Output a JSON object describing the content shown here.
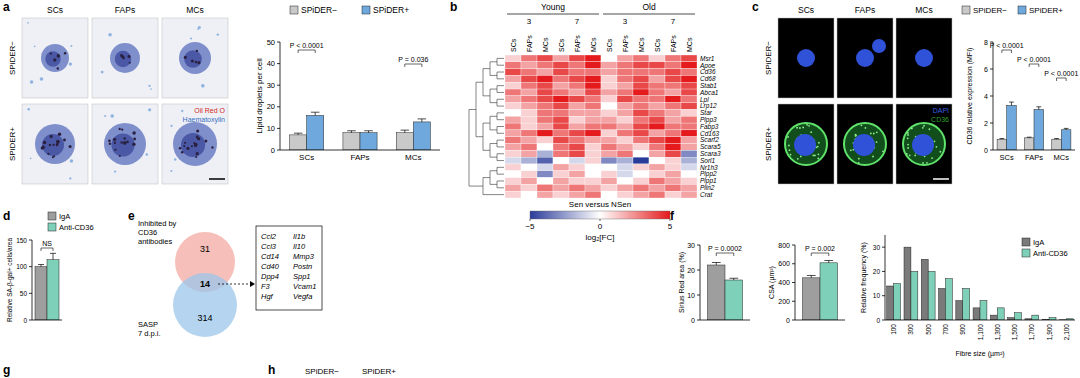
{
  "panel_labels": [
    "a",
    "b",
    "c",
    "d",
    "e",
    "f",
    "g",
    "h"
  ],
  "bottom_legend": [
    "SPiDER−",
    "SPiDER+"
  ],
  "micrographs": [
    {
      "columns": [
        "SCs",
        "FAPs",
        "MCs"
      ],
      "rows": [
        "SPiDER−",
        "SPiDER+"
      ],
      "stains": [
        {
          "text": "Oil Red O",
          "color": "#d62728"
        },
        {
          "text": "Haematoxylin",
          "color": "#3a6fc4"
        }
      ]
    },
    {
      "columns": [
        "SCs",
        "FAPs",
        "MCs"
      ],
      "rows": [
        "SPiDER−",
        "SPiDER+"
      ],
      "stains": [
        {
          "text": "DAPI",
          "color": "#3a5fe0"
        },
        {
          "text": "CD36",
          "color": "#2ca02c"
        }
      ]
    }
  ],
  "venn": {
    "sets": [
      {
        "label": [
          "Inhibited by",
          "CD36",
          "antibodies"
        ],
        "count": 31,
        "color": "#f4aaa3"
      },
      {
        "label": [
          "SASP",
          "7 d.p.i."
        ],
        "count": 314,
        "color": "#9cc6ea"
      }
    ],
    "overlap": 14,
    "genes": [
      "Ccl2",
      "Ccl3",
      "Cd14",
      "Cd40",
      "Dpp4",
      "F3",
      "Hgf",
      "Il1b",
      "Il10",
      "Mmp3",
      "Postn",
      "Spp1",
      "Vcam1",
      "Vegfa"
    ]
  },
  "chart_data": [
    {
      "type": "bar",
      "y_label": "Lipid droplets per cell",
      "categories": [
        "SCs",
        "FAPs",
        "MCs"
      ],
      "series": [
        {
          "name": "SPiDER−",
          "color": "#c9c9c9",
          "values": [
            7,
            8,
            8
          ],
          "errors": [
            0.8,
            0.9,
            1.2
          ]
        },
        {
          "name": "SPiDER+",
          "color": "#6fa8dc",
          "values": [
            16,
            8,
            13
          ],
          "errors": [
            1.5,
            0.9,
            1.4
          ]
        }
      ],
      "ylim": [
        0,
        50
      ],
      "yticks": [
        0,
        10,
        20,
        30,
        40,
        50
      ],
      "legend": "top",
      "annotations": [
        {
          "text": "P < 0.0001",
          "category": 0
        },
        {
          "text": "P = 0.036",
          "category": 2
        }
      ]
    },
    {
      "type": "heatmap",
      "groups": [
        {
          "label": "Young",
          "days": [
            {
              "label": "3",
              "columns": [
                "SCs",
                "FAPs",
                "MCs"
              ]
            },
            {
              "label": "7",
              "columns": [
                "SCs",
                "FAPs",
                "MCs"
              ]
            }
          ]
        },
        {
          "label": "Old",
          "days": [
            {
              "label": "3",
              "columns": [
                "SCs",
                "FAPs",
                "MCs"
              ]
            },
            {
              "label": "7",
              "columns": [
                "SCs",
                "FAPs",
                "MCs"
              ]
            }
          ]
        }
      ],
      "rows": [
        "Msr1",
        "Apoe",
        "Cd36",
        "Cd68",
        "Stab1",
        "Abca1",
        "Lpl",
        "Lrp12",
        "Star",
        "Plpp3",
        "Fabp3",
        "Cd163",
        "Scarf2",
        "Scara5",
        "Scara3",
        "Sorl1",
        "Nr1h3",
        "Plpp2",
        "Plpp1",
        "Plin2",
        "Crat"
      ],
      "cells": [
        [
          1,
          3,
          4,
          2,
          4,
          5,
          0,
          2,
          3,
          1,
          3,
          4
        ],
        [
          3,
          2,
          3,
          4,
          3,
          5,
          2,
          3,
          4,
          4,
          3,
          5
        ],
        [
          4,
          3,
          2,
          4,
          3,
          3,
          2,
          3,
          3,
          3,
          4,
          3
        ],
        [
          2,
          4,
          5,
          3,
          4,
          5,
          1,
          3,
          4,
          2,
          4,
          5
        ],
        [
          1,
          3,
          4,
          2,
          3,
          5,
          1,
          2,
          4,
          3,
          3,
          4
        ],
        [
          3,
          2,
          4,
          3,
          2,
          4,
          2,
          3,
          5,
          3,
          2,
          4
        ],
        [
          2,
          3,
          4,
          5,
          4,
          3,
          1,
          4,
          3,
          3,
          5,
          3
        ],
        [
          1,
          2,
          3,
          4,
          2,
          3,
          0,
          2,
          3,
          2,
          3,
          4
        ],
        [
          0,
          1,
          3,
          3,
          2,
          2,
          1,
          2,
          4,
          3,
          2,
          1
        ],
        [
          2,
          1,
          3,
          4,
          1,
          2,
          2,
          1,
          3,
          4,
          2,
          3
        ],
        [
          3,
          1,
          2,
          4,
          2,
          3,
          3,
          2,
          4,
          5,
          3,
          3
        ],
        [
          2,
          3,
          5,
          3,
          4,
          5,
          1,
          3,
          4,
          2,
          3,
          5
        ],
        [
          3,
          2,
          1,
          4,
          3,
          2,
          2,
          1,
          3,
          4,
          5,
          2
        ],
        [
          2,
          3,
          0,
          3,
          4,
          1,
          3,
          2,
          1,
          3,
          5,
          2
        ],
        [
          1,
          2,
          -2,
          3,
          4,
          1,
          2,
          3,
          0,
          2,
          4,
          -3
        ],
        [
          -1,
          -2,
          -4,
          0,
          -1,
          1,
          -3,
          -2,
          -5,
          0,
          1,
          -2
        ],
        [
          1,
          0,
          -1,
          2,
          1,
          0,
          0,
          -1,
          1,
          2,
          1,
          -1
        ],
        [
          0,
          1,
          -3,
          1,
          2,
          0,
          1,
          -1,
          0,
          1,
          2,
          0
        ],
        [
          1,
          2,
          0,
          2,
          1,
          1,
          2,
          0,
          1,
          3,
          2,
          1
        ],
        [
          2,
          1,
          3,
          2,
          3,
          2,
          1,
          2,
          3,
          2,
          3,
          2
        ],
        [
          1,
          0,
          2,
          1,
          2,
          3,
          0,
          1,
          2,
          3,
          1,
          2
        ]
      ],
      "colorbar": {
        "title": "Sen versus NSen",
        "label": "log₂[FC]",
        "range": [
          -5,
          5
        ],
        "ticks": [
          {
            "value": -5,
            "label": "−5"
          },
          0,
          5
        ],
        "colors": [
          "#2b3b9a",
          "#ffffff",
          "#e41a1c"
        ]
      }
    },
    {
      "type": "bar",
      "y_label": "CD36 relative expression (MFI)",
      "categories": [
        "SCs",
        "FAPs",
        "MCs"
      ],
      "series": [
        {
          "name": "SPiDER−",
          "color": "#c9c9c9",
          "values": [
            0.8,
            0.9,
            0.8
          ],
          "errors": [
            0.05,
            0.05,
            0.05
          ]
        },
        {
          "name": "SPiDER+",
          "color": "#6fa8dc",
          "values": [
            3.3,
            3.0,
            1.5
          ],
          "errors": [
            0.25,
            0.2,
            0.1
          ]
        }
      ],
      "ylim": [
        0,
        8
      ],
      "yticks": [
        0,
        2,
        4,
        6,
        8
      ],
      "legend": "top",
      "annotations": [
        {
          "text": "P < 0.0001",
          "category": 0
        },
        {
          "text": "P < 0.0001",
          "category": 1
        },
        {
          "text": "P < 0.0001",
          "category": 2
        }
      ]
    },
    {
      "type": "bar",
      "y_label": "Relative SA-β-gal+ cells/area",
      "categories": [
        null
      ],
      "series": [
        {
          "name": "IgA",
          "color": "#9e9e9e",
          "values": [
            100
          ],
          "errors": [
            4
          ]
        },
        {
          "name": "Anti-CD36",
          "color": "#7fd0b8",
          "values": [
            113
          ],
          "errors": [
            12
          ]
        }
      ],
      "ylim": [
        0,
        150
      ],
      "yticks": [
        0,
        50,
        100,
        150
      ],
      "legend": "top-right",
      "annotations": [
        {
          "text": "NS",
          "category": 0
        }
      ]
    },
    {
      "type": "bar",
      "y_label": "Sirius Red area (%)",
      "categories": [
        null
      ],
      "series": [
        {
          "name": "IgA",
          "color": "#9e9e9e",
          "values": [
            22
          ],
          "errors": [
            1
          ]
        },
        {
          "name": "Anti-CD36",
          "color": "#7fd0b8",
          "values": [
            16
          ],
          "errors": [
            0.7
          ]
        }
      ],
      "ylim": [
        0,
        30
      ],
      "yticks": [
        0,
        10,
        20,
        30
      ],
      "annotations": [
        {
          "text": "P = 0.0002",
          "category": 0
        }
      ]
    },
    {
      "type": "bar",
      "y_label": "CSA (µm²)",
      "categories": [
        null
      ],
      "series": [
        {
          "name": "IgA",
          "color": "#9e9e9e",
          "values": [
            450
          ],
          "errors": [
            25
          ]
        },
        {
          "name": "Anti-CD36",
          "color": "#7fd0b8",
          "values": [
            610
          ],
          "errors": [
            25
          ]
        }
      ],
      "ylim": [
        0,
        800
      ],
      "yticks": [
        0,
        200,
        400,
        600,
        800
      ],
      "annotations": [
        {
          "text": "P = 0.002",
          "category": 0
        }
      ]
    },
    {
      "type": "bar",
      "y_label": "Relative frequency (%)",
      "x_label": "Fibre size (µm²)",
      "categories": [
        "100",
        "300",
        "500",
        "700",
        "900",
        "1,100",
        "1,300",
        "1,500",
        "1,700",
        "1,900",
        "2,100"
      ],
      "series": [
        {
          "name": "IgA",
          "color": "#7a7a7a",
          "values": [
            14,
            30,
            25,
            13,
            8,
            5,
            2,
            1,
            0.5,
            0.2,
            0.1
          ]
        },
        {
          "name": "Anti-CD36",
          "color": "#7fd0b8",
          "values": [
            15,
            20,
            20,
            17,
            13,
            8,
            5,
            3,
            2,
            1,
            0.5
          ]
        }
      ],
      "ylim": [
        0,
        35
      ],
      "yticks": [
        0,
        10,
        20,
        30
      ],
      "legend": "top-right"
    }
  ]
}
